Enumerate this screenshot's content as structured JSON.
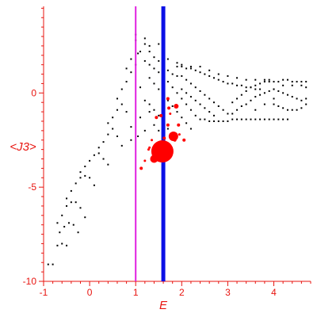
{
  "chart_data": {
    "type": "scatter",
    "title": "",
    "xlabel": "E",
    "ylabel": "<J3>",
    "xlim": [
      -1,
      4.8
    ],
    "ylim": [
      -10,
      4.6
    ],
    "x_ticks": [
      "-1",
      "0",
      "1",
      "2",
      "3",
      "4"
    ],
    "y_ticks": [
      "-10",
      "-5",
      "0"
    ],
    "grid": false,
    "colors": {
      "axes": "#e8140f",
      "points": "#000000",
      "highlight": "#ff0000",
      "magenta_line": "#e020e0",
      "blue_line": "#0a10e6"
    },
    "vertical_lines": [
      {
        "x": 1.0,
        "color": "#e020e0"
      },
      {
        "x": 1.6,
        "color": "#0a10e6"
      }
    ],
    "series": [
      {
        "marker": "dot",
        "points": [
          [
            -0.9,
            -9.1
          ],
          [
            -0.8,
            -9.1
          ],
          [
            -0.7,
            -8.1
          ],
          [
            -0.6,
            -8.0
          ],
          [
            -0.5,
            -8.1
          ],
          [
            -0.65,
            -7.4
          ],
          [
            -0.55,
            -7.1
          ],
          [
            -0.45,
            -6.9
          ],
          [
            -0.35,
            -7.0
          ],
          [
            -0.25,
            -7.4
          ],
          [
            -0.7,
            -6.9
          ],
          [
            -0.6,
            -6.5
          ],
          [
            -0.5,
            -6.0
          ],
          [
            -0.4,
            -5.8
          ],
          [
            -0.3,
            -5.8
          ],
          [
            -0.2,
            -6.1
          ],
          [
            -0.1,
            -6.6
          ],
          [
            -0.5,
            -5.6
          ],
          [
            -0.4,
            -5.2
          ],
          [
            -0.3,
            -4.8
          ],
          [
            -0.2,
            -4.5
          ],
          [
            -0.1,
            -4.4
          ],
          [
            0.0,
            -4.5
          ],
          [
            0.1,
            -4.9
          ],
          [
            -0.2,
            -4.2
          ],
          [
            -0.1,
            -3.9
          ],
          [
            0.0,
            -3.6
          ],
          [
            0.1,
            -3.3
          ],
          [
            0.2,
            -3.2
          ],
          [
            0.3,
            -3.5
          ],
          [
            0.4,
            -3.8
          ],
          [
            0.2,
            -2.9
          ],
          [
            0.3,
            -2.6
          ],
          [
            0.4,
            -2.2
          ],
          [
            0.5,
            -1.9
          ],
          [
            0.6,
            -2.3
          ],
          [
            0.7,
            -2.8
          ],
          [
            0.4,
            -1.6
          ],
          [
            0.5,
            -1.3
          ],
          [
            0.6,
            -0.9
          ],
          [
            0.7,
            -0.6
          ],
          [
            0.8,
            -1.0
          ],
          [
            0.9,
            -1.8
          ],
          [
            0.9,
            -2.5
          ],
          [
            0.6,
            -0.3
          ],
          [
            0.7,
            0.2
          ],
          [
            0.8,
            0.6
          ],
          [
            0.9,
            1.1
          ],
          [
            1.0,
            1.5
          ],
          [
            1.05,
            2.1
          ],
          [
            1.0,
            2.8
          ],
          [
            1.0,
            3.1
          ],
          [
            0.8,
            1.3
          ],
          [
            0.9,
            1.8
          ],
          [
            1.1,
            0.3
          ],
          [
            1.2,
            -0.4
          ],
          [
            1.3,
            -1.0
          ],
          [
            1.1,
            -1.3
          ],
          [
            1.2,
            -2.0
          ],
          [
            1.05,
            -2.3
          ],
          [
            1.2,
            2.6
          ],
          [
            1.3,
            2.2
          ],
          [
            1.4,
            1.9
          ],
          [
            1.5,
            1.7
          ],
          [
            1.6,
            1.4
          ],
          [
            1.7,
            1.2
          ],
          [
            1.8,
            1.0
          ],
          [
            1.9,
            0.9
          ],
          [
            1.2,
            1.7
          ],
          [
            1.3,
            1.5
          ],
          [
            1.4,
            1.3
          ],
          [
            1.5,
            1.1
          ],
          [
            1.6,
            0.9
          ],
          [
            1.7,
            0.6
          ],
          [
            1.8,
            0.3
          ],
          [
            1.9,
            0.0
          ],
          [
            2.0,
            -0.3
          ],
          [
            2.1,
            -0.6
          ],
          [
            2.2,
            -0.9
          ],
          [
            2.3,
            -1.2
          ],
          [
            2.4,
            -1.4
          ],
          [
            1.3,
            0.8
          ],
          [
            1.4,
            0.5
          ],
          [
            1.5,
            0.2
          ],
          [
            1.6,
            -0.1
          ],
          [
            1.7,
            -0.4
          ],
          [
            1.8,
            -0.7
          ],
          [
            1.9,
            -1.0
          ],
          [
            2.0,
            -1.3
          ],
          [
            2.1,
            -1.6
          ],
          [
            2.2,
            -1.9
          ],
          [
            1.3,
            -0.6
          ],
          [
            1.4,
            -0.9
          ],
          [
            1.5,
            -1.2
          ],
          [
            1.6,
            -1.6
          ],
          [
            1.7,
            -1.9
          ],
          [
            1.4,
            -1.7
          ],
          [
            1.5,
            -2.0
          ],
          [
            1.6,
            -2.2
          ],
          [
            1.9,
            1.4
          ],
          [
            2.0,
            1.4
          ],
          [
            2.1,
            1.3
          ],
          [
            2.2,
            1.3
          ],
          [
            2.3,
            1.2
          ],
          [
            2.4,
            1.1
          ],
          [
            2.5,
            1.0
          ],
          [
            2.6,
            0.9
          ],
          [
            2.7,
            0.8
          ],
          [
            2.8,
            0.7
          ],
          [
            2.9,
            0.6
          ],
          [
            3.0,
            0.5
          ],
          [
            3.1,
            0.5
          ],
          [
            3.2,
            0.4
          ],
          [
            3.3,
            0.4
          ],
          [
            3.4,
            0.3
          ],
          [
            3.5,
            0.3
          ],
          [
            3.6,
            0.2
          ],
          [
            3.7,
            0.2
          ],
          [
            2.0,
            0.9
          ],
          [
            2.1,
            0.7
          ],
          [
            2.2,
            0.5
          ],
          [
            2.3,
            0.3
          ],
          [
            2.4,
            0.1
          ],
          [
            2.5,
            -0.1
          ],
          [
            2.6,
            -0.3
          ],
          [
            2.7,
            -0.5
          ],
          [
            2.8,
            -0.7
          ],
          [
            2.9,
            -0.9
          ],
          [
            3.0,
            -1.1
          ],
          [
            2.0,
            0.2
          ],
          [
            2.1,
            0.0
          ],
          [
            2.2,
            -0.2
          ],
          [
            2.3,
            -0.4
          ],
          [
            2.4,
            -0.6
          ],
          [
            2.5,
            -0.8
          ],
          [
            2.6,
            -1.0
          ],
          [
            2.7,
            -1.2
          ],
          [
            2.5,
            -1.4
          ],
          [
            2.6,
            -1.5
          ],
          [
            2.7,
            -1.5
          ],
          [
            2.8,
            -1.5
          ],
          [
            2.9,
            -1.5
          ],
          [
            3.0,
            -1.5
          ],
          [
            3.1,
            -1.4
          ],
          [
            3.2,
            -1.4
          ],
          [
            3.3,
            -1.4
          ],
          [
            3.4,
            -1.4
          ],
          [
            3.5,
            -1.4
          ],
          [
            3.6,
            -1.4
          ],
          [
            3.7,
            -1.4
          ],
          [
            3.8,
            -1.4
          ],
          [
            3.9,
            -1.4
          ],
          [
            4.0,
            -1.4
          ],
          [
            4.1,
            -1.4
          ],
          [
            4.2,
            -1.4
          ],
          [
            4.3,
            -1.4
          ],
          [
            3.1,
            -1.1
          ],
          [
            3.2,
            -0.9
          ],
          [
            3.3,
            -0.7
          ],
          [
            3.4,
            -0.6
          ],
          [
            3.5,
            -0.4
          ],
          [
            3.6,
            -0.2
          ],
          [
            3.7,
            -0.1
          ],
          [
            3.8,
            0.0
          ],
          [
            3.9,
            0.1
          ],
          [
            4.0,
            0.2
          ],
          [
            3.1,
            -0.5
          ],
          [
            3.2,
            -0.3
          ],
          [
            3.3,
            -0.1
          ],
          [
            3.4,
            0.1
          ],
          [
            3.5,
            0.3
          ],
          [
            3.6,
            0.4
          ],
          [
            3.7,
            0.5
          ],
          [
            3.8,
            0.6
          ],
          [
            3.9,
            0.6
          ],
          [
            3.8,
            0.7
          ],
          [
            3.9,
            0.7
          ],
          [
            4.0,
            0.6
          ],
          [
            4.1,
            0.6
          ],
          [
            4.2,
            0.7
          ],
          [
            4.3,
            0.7
          ],
          [
            4.4,
            0.6
          ],
          [
            4.5,
            0.6
          ],
          [
            4.6,
            0.6
          ],
          [
            4.7,
            0.6
          ],
          [
            4.0,
            0.2
          ],
          [
            4.1,
            0.1
          ],
          [
            4.2,
            0.0
          ],
          [
            4.3,
            -0.1
          ],
          [
            4.4,
            -0.2
          ],
          [
            4.5,
            -0.3
          ],
          [
            4.6,
            -0.4
          ],
          [
            4.7,
            -0.3
          ],
          [
            4.0,
            -0.6
          ],
          [
            4.1,
            -0.7
          ],
          [
            4.2,
            -0.8
          ],
          [
            4.3,
            -0.9
          ],
          [
            4.4,
            -0.9
          ],
          [
            4.5,
            -0.9
          ],
          [
            4.6,
            -0.8
          ],
          [
            4.7,
            -0.6
          ],
          [
            4.7,
            0.3
          ],
          [
            4.6,
            0.4
          ],
          [
            4.4,
            0.4
          ],
          [
            4.2,
            0.4
          ],
          [
            3.6,
            -0.9
          ],
          [
            3.8,
            -0.6
          ],
          [
            4.0,
            -0.3
          ],
          [
            1.1,
            2.2
          ],
          [
            1.2,
            2.9
          ],
          [
            1.3,
            2.5
          ],
          [
            1.5,
            2.6
          ],
          [
            1.7,
            1.8
          ],
          [
            1.9,
            1.6
          ],
          [
            2.0,
            1.5
          ],
          [
            2.2,
            1.4
          ],
          [
            2.4,
            1.4
          ],
          [
            2.6,
            1.2
          ],
          [
            2.8,
            1.0
          ],
          [
            3.0,
            0.9
          ],
          [
            3.2,
            0.8
          ],
          [
            3.4,
            0.7
          ],
          [
            3.6,
            0.7
          ]
        ]
      },
      {
        "marker": "circle",
        "color": "#ff0000",
        "points": [
          [
            1.58,
            -3.1,
            14
          ],
          [
            1.4,
            -3.5,
            5
          ],
          [
            1.82,
            -2.3,
            6
          ],
          [
            1.88,
            -0.7,
            3
          ],
          [
            1.72,
            -0.8,
            2
          ],
          [
            1.7,
            -1.7,
            2
          ],
          [
            1.45,
            -1.3,
            2
          ],
          [
            1.55,
            -1.2,
            2
          ],
          [
            1.93,
            -1.7,
            2
          ],
          [
            2.05,
            -2.5,
            2
          ],
          [
            1.2,
            -3.6,
            1.5
          ],
          [
            1.12,
            -4.0,
            2
          ],
          [
            1.3,
            -2.9,
            1.5
          ],
          [
            1.7,
            -0.3,
            2
          ],
          [
            1.35,
            -2.5,
            1.5
          ],
          [
            1.75,
            -1.1,
            1.5
          ],
          [
            1.62,
            -2.4,
            2
          ],
          [
            1.28,
            -3.0,
            1.5
          ],
          [
            1.85,
            -2.5,
            2
          ],
          [
            1.95,
            -2.2,
            1.5
          ]
        ]
      }
    ]
  }
}
